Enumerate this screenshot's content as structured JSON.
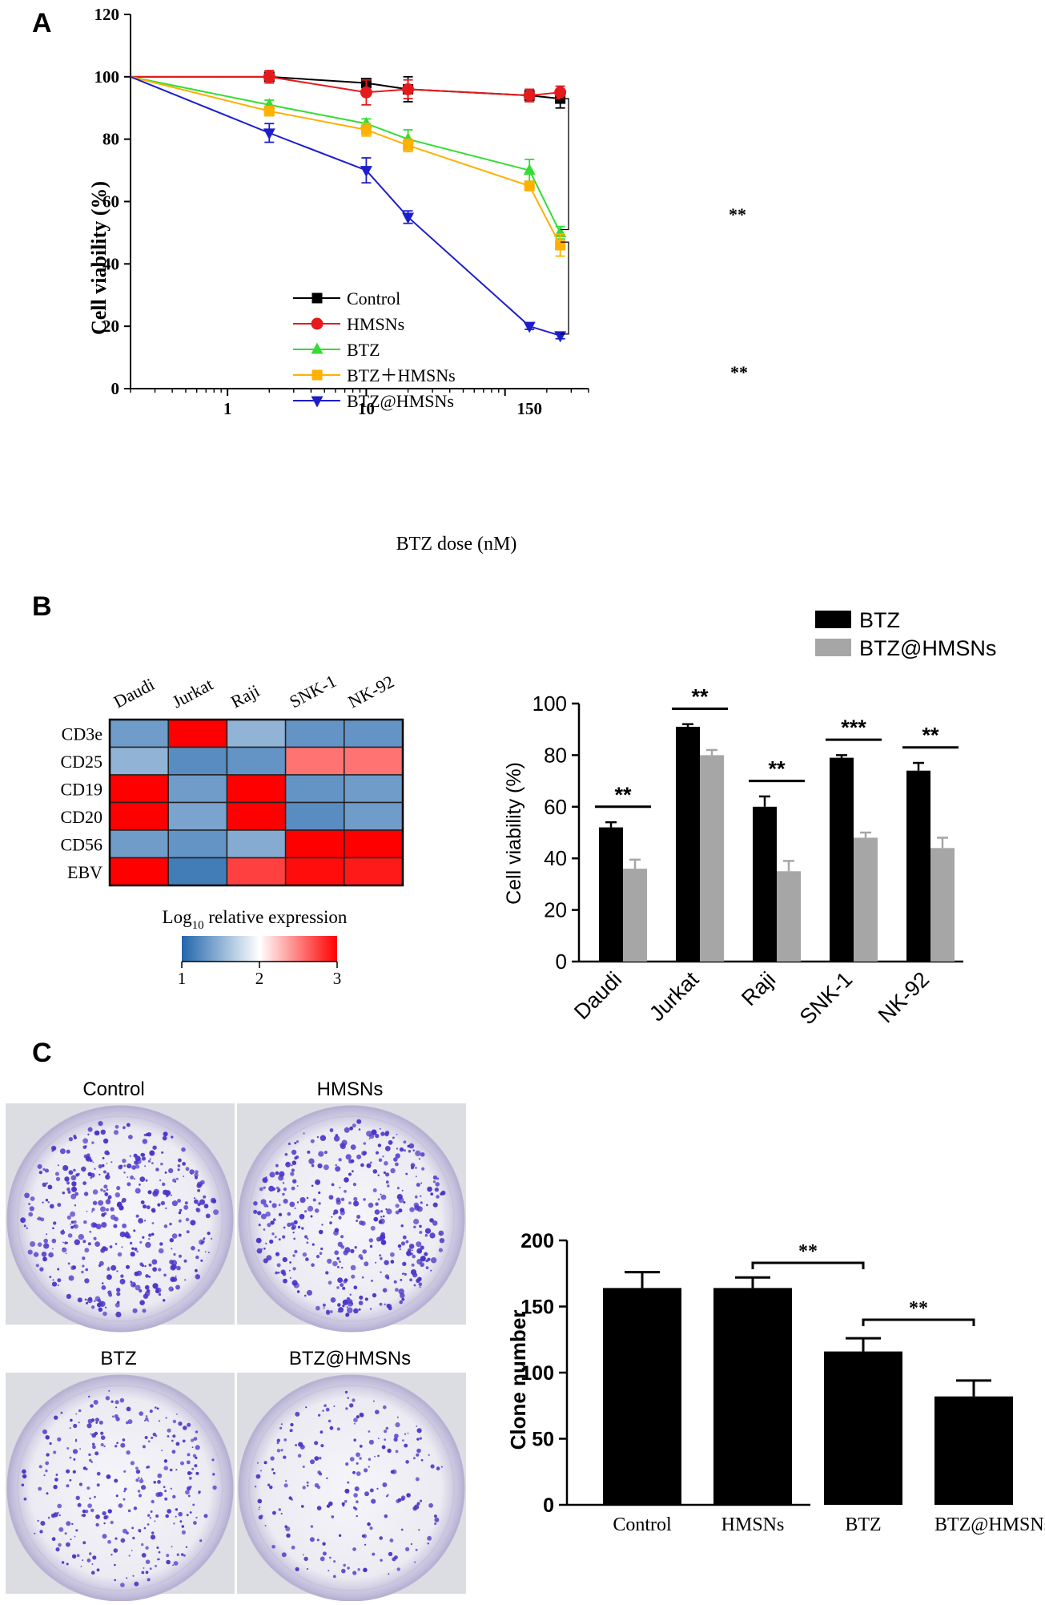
{
  "panels": {
    "a": "A",
    "b": "B",
    "c": "C"
  },
  "chart_data": [
    {
      "id": "A",
      "type": "line",
      "xlabel": "BTZ dose (nM)",
      "ylabel": "Cell viability (%)",
      "x_scale": "log",
      "x_ticks": [
        "1",
        "10",
        "150"
      ],
      "y_ticks": [
        "0",
        "20",
        "40",
        "60",
        "80",
        "100",
        "120"
      ],
      "ylim": [
        0,
        120
      ],
      "x": [
        0.2,
        2,
        10,
        20,
        150,
        250
      ],
      "legend_position": "lower-left",
      "series": [
        {
          "name": "Control",
          "color": "#000000",
          "marker": "square",
          "values": [
            100,
            100,
            98,
            96,
            94,
            93
          ],
          "errors": [
            0,
            0,
            0,
            4,
            1.5,
            3
          ]
        },
        {
          "name": "HMSNs",
          "color": "#e41a1c",
          "marker": "circle",
          "values": [
            100,
            100,
            95,
            96,
            94,
            95
          ],
          "errors": [
            0,
            2,
            4,
            3,
            2,
            2
          ]
        },
        {
          "name": "BTZ",
          "color": "#33dd33",
          "marker": "triangle-up",
          "values": [
            100,
            91,
            85,
            80,
            70,
            50
          ],
          "errors": [
            0,
            1.5,
            1.5,
            3,
            3.5,
            2
          ]
        },
        {
          "name": "BTZ＋HMSNs",
          "color": "#ffb000",
          "marker": "square",
          "values": [
            100,
            89,
            83,
            78,
            65,
            46
          ],
          "errors": [
            0,
            1.5,
            2,
            2,
            1.5,
            3.5
          ]
        },
        {
          "name": "BTZ@HMSNs",
          "color": "#1d1dcc",
          "marker": "triangle-down",
          "values": [
            100,
            82,
            70,
            55,
            20,
            17
          ],
          "errors": [
            0,
            3,
            4,
            2,
            1,
            1
          ]
        }
      ],
      "annotations": [
        {
          "text": "**",
          "between": [
            "Control",
            "BTZ"
          ]
        },
        {
          "text": "**",
          "between": [
            "BTZ＋HMSNs",
            "BTZ@HMSNs"
          ]
        }
      ]
    },
    {
      "id": "B-heatmap",
      "type": "heatmap",
      "columns": [
        "Daudi",
        "Jurkat",
        "Raji",
        "SNK-1",
        "NK-92"
      ],
      "rows": [
        "CD3e",
        "CD25",
        "CD19",
        "CD20",
        "CD56",
        "EBV"
      ],
      "values": [
        [
          1.35,
          3.0,
          1.5,
          1.3,
          1.3
        ],
        [
          1.5,
          1.25,
          1.3,
          2.55,
          2.55
        ],
        [
          3.0,
          1.35,
          3.0,
          1.3,
          1.35
        ],
        [
          3.0,
          1.4,
          3.0,
          1.25,
          1.35
        ],
        [
          1.35,
          1.3,
          1.45,
          3.0,
          3.0
        ],
        [
          3.0,
          1.15,
          2.75,
          2.95,
          2.9
        ]
      ],
      "colorbar": {
        "title_prefix": "Log",
        "title_sub": "10",
        "title_suffix": " relative expression",
        "min": 1,
        "max": 3,
        "ticks": [
          "1",
          "2",
          "3"
        ],
        "low_color": "#2166ac",
        "mid_color": "#ffffff",
        "high_color": "#ff0000"
      }
    },
    {
      "id": "B-bar",
      "type": "bar",
      "ylabel": "Cell viability (%)",
      "ylim": [
        0,
        100
      ],
      "y_ticks": [
        "0",
        "20",
        "40",
        "60",
        "80",
        "100"
      ],
      "categories": [
        "Daudi",
        "Jurkat",
        "Raji",
        "SNK-1",
        "NK-92"
      ],
      "legend_position": "top-right",
      "series": [
        {
          "name": "BTZ",
          "color": "#000000",
          "values": [
            52,
            91,
            60,
            79,
            74
          ],
          "errors": [
            2,
            1,
            4,
            1,
            3
          ]
        },
        {
          "name": "BTZ@HMSNs",
          "color": "#a6a6a6",
          "values": [
            36,
            80,
            35,
            48,
            44
          ],
          "errors": [
            3.5,
            2,
            4,
            2,
            4
          ]
        }
      ],
      "significance": [
        "**",
        "**",
        "**",
        "***",
        "**"
      ]
    },
    {
      "id": "C-bar",
      "type": "bar",
      "ylabel": "Clone number",
      "ylim": [
        0,
        200
      ],
      "y_ticks": [
        "0",
        "50",
        "100",
        "150",
        "200"
      ],
      "categories": [
        "Control",
        "HMSNs",
        "BTZ",
        "BTZ@HMSNs"
      ],
      "series": [
        {
          "color": "#000000",
          "values": [
            164,
            164,
            116,
            82
          ],
          "errors": [
            12,
            8,
            10,
            12
          ]
        }
      ],
      "significance": [
        {
          "from": 1,
          "to": 2,
          "text": "**"
        },
        {
          "from": 2,
          "to": 3,
          "text": "**"
        }
      ]
    }
  ],
  "photos": {
    "labels": [
      "Control",
      "HMSNs",
      "BTZ",
      "BTZ@HMSNs"
    ],
    "colony_color": "#4a35c8",
    "colony_counts_relative": [
      1.0,
      1.0,
      0.7,
      0.5
    ]
  }
}
